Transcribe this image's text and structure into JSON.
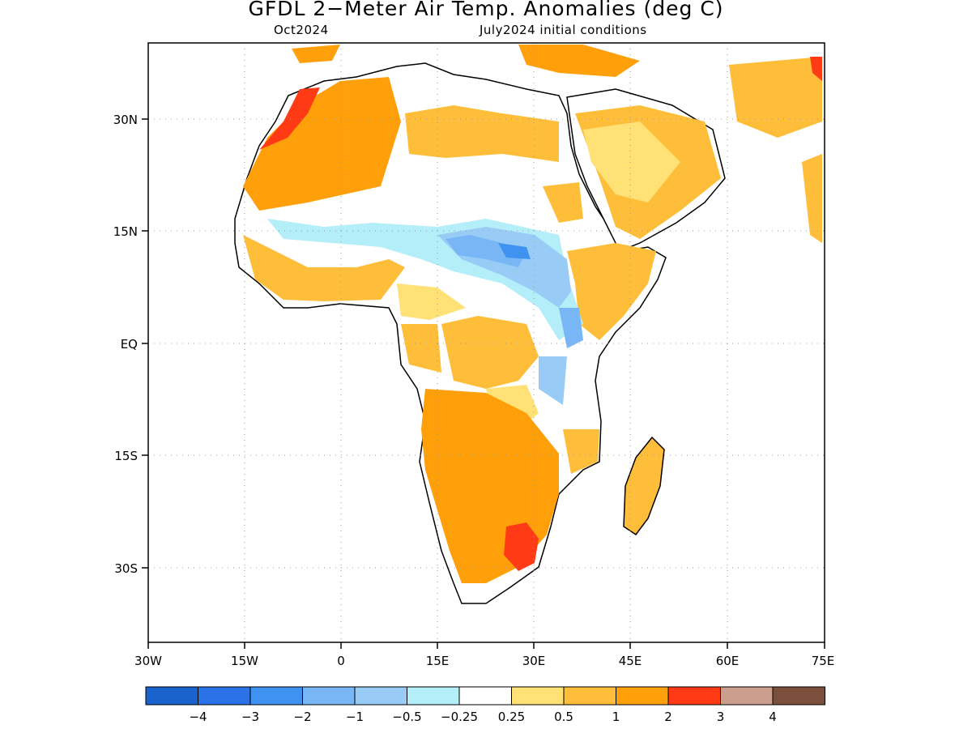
{
  "title": "GFDL 2−Meter Air Temp. Anomalies (deg C)",
  "subtitle_left": "Oct2024",
  "subtitle_right": "July2024 initial conditions",
  "map": {
    "lon_range": [
      -30,
      75
    ],
    "lat_range": [
      -40,
      40
    ],
    "lat_ticks": [
      {
        "value": 30,
        "label": "30N"
      },
      {
        "value": 15,
        "label": "15N"
      },
      {
        "value": 0,
        "label": "EQ"
      },
      {
        "value": -15,
        "label": "15S"
      },
      {
        "value": -30,
        "label": "30S"
      }
    ],
    "lon_ticks": [
      {
        "value": -30,
        "label": "30W"
      },
      {
        "value": -15,
        "label": "15W"
      },
      {
        "value": 0,
        "label": "0"
      },
      {
        "value": 15,
        "label": "15E"
      },
      {
        "value": 30,
        "label": "30E"
      },
      {
        "value": 45,
        "label": "45E"
      },
      {
        "value": 60,
        "label": "60E"
      },
      {
        "value": 75,
        "label": "75E"
      }
    ],
    "grid": "dotted"
  },
  "colorbar": {
    "colors": [
      "#1a62cc",
      "#2b72e8",
      "#3f92f0",
      "#78b6f5",
      "#98ccf7",
      "#b4eef8",
      "#ffffff",
      "#ffe175",
      "#ffbe3a",
      "#ff9f0a",
      "#ff3a14",
      "#cc9e8e",
      "#7c4e3c"
    ],
    "labels": [
      "−4",
      "−3",
      "−2",
      "−1",
      "−0.5",
      "−0.25",
      "0.25",
      "0.5",
      "1",
      "2",
      "3",
      "4"
    ]
  }
}
